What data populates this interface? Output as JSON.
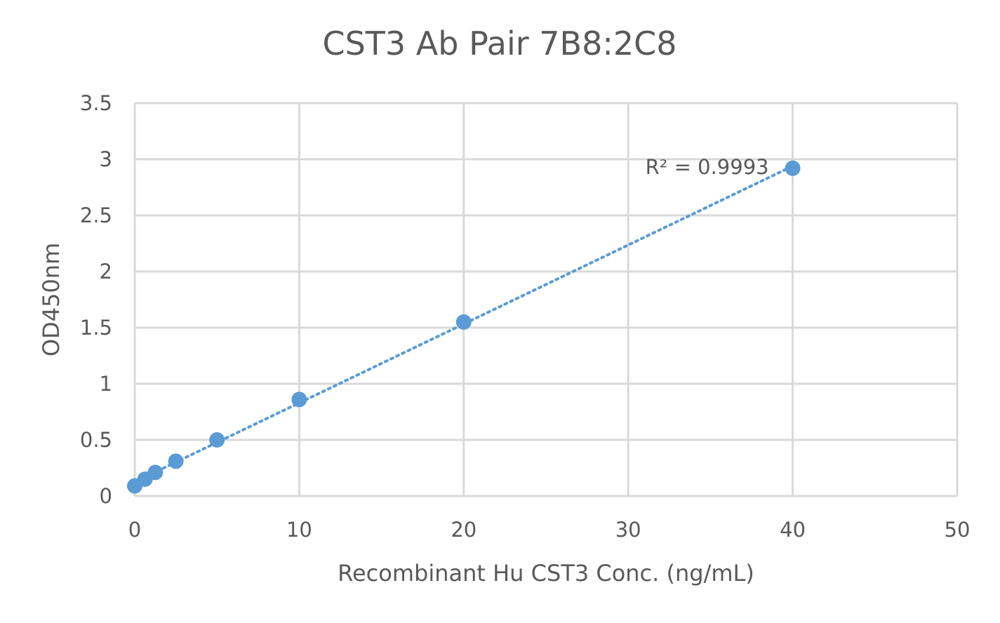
{
  "chart_data": {
    "type": "scatter",
    "title": "CST3 Ab Pair 7B8:2C8",
    "xlabel": "Recombinant Hu CST3 Conc. (ng/mL)",
    "ylabel": "OD450nm",
    "xlim": [
      0,
      50
    ],
    "ylim": [
      0,
      3.5
    ],
    "x_ticks": [
      0,
      10,
      20,
      30,
      40,
      50
    ],
    "y_ticks": [
      0,
      0.5,
      1,
      1.5,
      2,
      2.5,
      3,
      3.5
    ],
    "x_tick_labels": [
      "0",
      "10",
      "20",
      "30",
      "40",
      "50"
    ],
    "y_tick_labels": [
      "0",
      "0.5",
      "1",
      "1.5",
      "2",
      "2.5",
      "3",
      "3.5"
    ],
    "grid": true,
    "legend": "none",
    "series": [
      {
        "x": [
          0,
          0.625,
          1.25,
          2.5,
          5,
          10,
          20,
          40
        ],
        "y": [
          0.09,
          0.15,
          0.21,
          0.31,
          0.5,
          0.86,
          1.55,
          2.92
        ],
        "color": "#5b9bd5"
      }
    ],
    "trendline": {
      "type": "linear",
      "style": "dotted",
      "color": "#5b9bd5",
      "from_x": 0,
      "to_x": 40
    },
    "annotations": [
      {
        "text": "R² = 0.9993",
        "x": 40,
        "y": 2.92
      }
    ]
  }
}
